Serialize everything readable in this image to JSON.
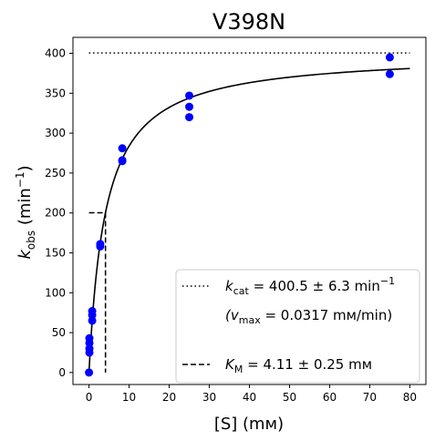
{
  "chart_data": {
    "type": "scatter",
    "title": "V398N",
    "xlabel": "[S] (mм)",
    "ylabel_main": "k",
    "ylabel_sub": "obs",
    "ylabel_unit_pre": " (min",
    "ylabel_unit_sup": "−1",
    "ylabel_unit_post": ")",
    "xlim": [
      -4,
      84
    ],
    "ylim": [
      -15,
      420
    ],
    "x_ticks": [
      0,
      10,
      20,
      30,
      40,
      50,
      60,
      70,
      80
    ],
    "y_ticks": [
      0,
      50,
      100,
      150,
      200,
      250,
      300,
      350,
      400
    ],
    "grid": false,
    "legend_position": "lower-right",
    "points": [
      {
        "x": 0.0,
        "y": 0
      },
      {
        "x": 0.1,
        "y": 25
      },
      {
        "x": 0.1,
        "y": 30
      },
      {
        "x": 0.1,
        "y": 37
      },
      {
        "x": 0.1,
        "y": 43
      },
      {
        "x": 0.8,
        "y": 65
      },
      {
        "x": 0.8,
        "y": 72
      },
      {
        "x": 0.8,
        "y": 77
      },
      {
        "x": 2.8,
        "y": 158
      },
      {
        "x": 2.8,
        "y": 161
      },
      {
        "x": 8.3,
        "y": 265
      },
      {
        "x": 8.3,
        "y": 266
      },
      {
        "x": 8.3,
        "y": 281
      },
      {
        "x": 25,
        "y": 320
      },
      {
        "x": 25,
        "y": 333
      },
      {
        "x": 25,
        "y": 347
      },
      {
        "x": 75,
        "y": 374
      },
      {
        "x": 75,
        "y": 395
      }
    ],
    "fit": {
      "kcat": 400.5,
      "KM": 4.11,
      "x_range": [
        0,
        80
      ]
    },
    "kcat_line": {
      "y": 400.5,
      "x_range": [
        0,
        80
      ]
    },
    "km_line": {
      "x": 4.11,
      "y": 200.25,
      "x_start": 0
    },
    "point_color": "#0000ff",
    "line_color": "#000000",
    "legend": {
      "kcat_prefix": "k",
      "kcat_sub": "cat",
      "kcat_value": " = 400.5 ± 6.3 min",
      "kcat_sup": "−1",
      "vmax_open": "(v",
      "vmax_sub": "max",
      "vmax_value": " = 0.0317 mм/min)",
      "km_prefix": "K",
      "km_sub": "M",
      "km_value": " = 4.11 ± 0.25 mм"
    }
  }
}
